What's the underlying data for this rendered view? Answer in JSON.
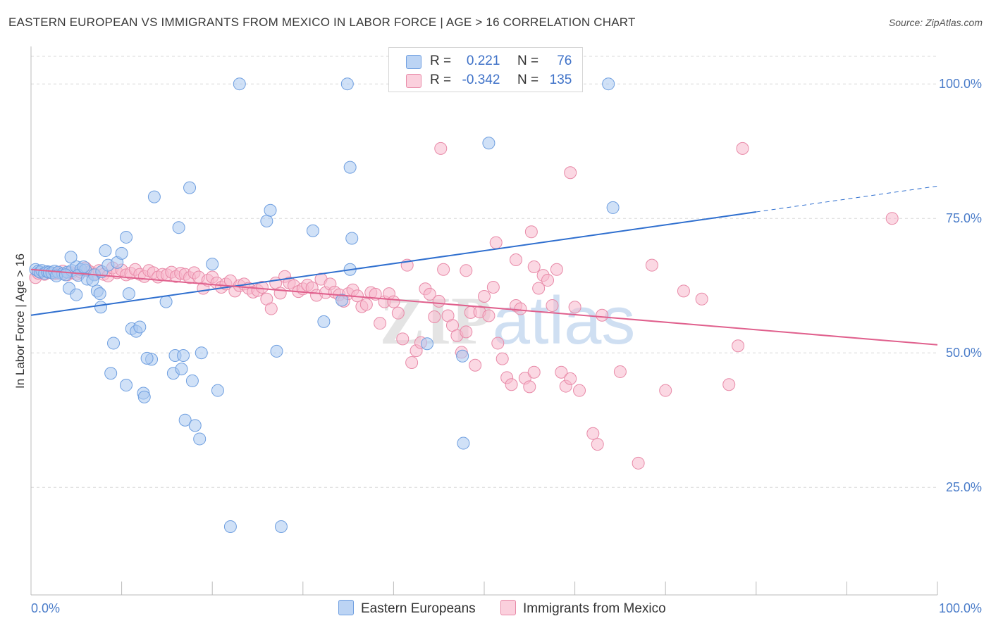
{
  "title": "EASTERN EUROPEAN VS IMMIGRANTS FROM MEXICO IN LABOR FORCE | AGE > 16 CORRELATION CHART",
  "source": "Source: ZipAtlas.com",
  "watermark": "ZIPatlas",
  "legend": {
    "rows": [
      {
        "r_label": "R =",
        "r_value": "0.221",
        "n_label": "N =",
        "n_value": "76"
      },
      {
        "r_label": "R =",
        "r_value": "-0.342",
        "n_label": "N =",
        "n_value": "135"
      }
    ]
  },
  "bottom_legend": [
    "Eastern Europeans",
    "Immigrants from Mexico"
  ],
  "colors": {
    "blue_fill": "#aac8f0",
    "blue_stroke": "#6f9fe0",
    "blue_line": "#2f6fcf",
    "pink_fill": "#f7b8cc",
    "pink_stroke": "#e88aa8",
    "pink_line": "#e0608d",
    "tick_text": "#4a7cc9",
    "grid": "#d8d8d8"
  },
  "chart_data": {
    "type": "scatter",
    "title": "EASTERN EUROPEAN VS IMMIGRANTS FROM MEXICO IN LABOR FORCE | AGE > 16 CORRELATION CHART",
    "xlabel": "",
    "ylabel": "In Labor Force | Age > 16",
    "xlim": [
      0,
      100
    ],
    "ylim": [
      5,
      105
    ],
    "x_tick_labels": [
      "0.0%",
      "100.0%"
    ],
    "y_ticks": [
      25,
      50,
      75,
      100
    ],
    "y_tick_labels": [
      "25.0%",
      "50.0%",
      "75.0%",
      "100.0%"
    ],
    "grid": true,
    "legend_position": "top-center",
    "series": [
      {
        "name": "Eastern Europeans",
        "r": 0.221,
        "n": 76,
        "trend": {
          "x0": 0,
          "y0": 57.0,
          "x1": 80,
          "y1": 76.2,
          "dashed_to_x": 100,
          "dashed_to_y": 81.0
        },
        "points": [
          [
            0.5,
            65.5
          ],
          [
            0.8,
            65.2
          ],
          [
            1.0,
            65.0
          ],
          [
            1.2,
            65.3
          ],
          [
            1.5,
            64.8
          ],
          [
            1.8,
            65.1
          ],
          [
            2.0,
            65.0
          ],
          [
            2.3,
            64.9
          ],
          [
            2.6,
            65.2
          ],
          [
            3.0,
            65.0
          ],
          [
            3.5,
            64.7
          ],
          [
            4.0,
            65.0
          ],
          [
            2.8,
            64.3
          ],
          [
            4.5,
            65.3
          ],
          [
            5.0,
            66.0
          ],
          [
            5.5,
            65.5
          ],
          [
            6.0,
            65.4
          ],
          [
            3.8,
            64.5
          ],
          [
            4.2,
            62.0
          ],
          [
            4.4,
            67.8
          ],
          [
            5.2,
            64.4
          ],
          [
            5.8,
            66.0
          ],
          [
            6.2,
            63.7
          ],
          [
            7.0,
            64.5
          ],
          [
            7.8,
            65.1
          ],
          [
            8.5,
            66.3
          ],
          [
            9.5,
            66.8
          ],
          [
            10.0,
            68.5
          ],
          [
            10.5,
            71.5
          ],
          [
            8.2,
            69.0
          ],
          [
            6.8,
            63.5
          ],
          [
            5.0,
            60.8
          ],
          [
            7.3,
            61.5
          ],
          [
            7.6,
            61.0
          ],
          [
            7.7,
            58.5
          ],
          [
            10.8,
            61.0
          ],
          [
            14.9,
            59.5
          ],
          [
            11.1,
            54.5
          ],
          [
            11.6,
            54.0
          ],
          [
            12.0,
            54.8
          ],
          [
            13.3,
            48.8
          ],
          [
            12.8,
            49.0
          ],
          [
            15.9,
            49.5
          ],
          [
            16.8,
            49.5
          ],
          [
            18.8,
            50.0
          ],
          [
            9.1,
            51.8
          ],
          [
            8.8,
            46.2
          ],
          [
            10.5,
            44.0
          ],
          [
            12.4,
            42.5
          ],
          [
            12.5,
            41.8
          ],
          [
            15.7,
            46.2
          ],
          [
            16.6,
            47.0
          ],
          [
            17.8,
            44.8
          ],
          [
            20.6,
            43.0
          ],
          [
            17.0,
            37.5
          ],
          [
            18.1,
            36.5
          ],
          [
            18.6,
            34.0
          ],
          [
            22.0,
            17.7
          ],
          [
            27.6,
            17.7
          ],
          [
            13.6,
            79.0
          ],
          [
            16.3,
            73.3
          ],
          [
            17.5,
            80.7
          ],
          [
            26.0,
            74.5
          ],
          [
            26.4,
            76.5
          ],
          [
            31.1,
            72.7
          ],
          [
            35.4,
            71.3
          ],
          [
            35.2,
            65.5
          ],
          [
            32.3,
            55.8
          ],
          [
            34.3,
            59.8
          ],
          [
            20.0,
            66.5
          ],
          [
            27.1,
            50.3
          ],
          [
            43.7,
            51.7
          ],
          [
            47.6,
            49.4
          ],
          [
            47.7,
            33.2
          ],
          [
            35.2,
            84.5
          ],
          [
            50.5,
            89.0
          ],
          [
            64.2,
            77.0
          ],
          [
            23.0,
            100.0
          ],
          [
            34.9,
            100.0
          ],
          [
            63.7,
            100.0
          ]
        ]
      },
      {
        "name": "Immigrants from Mexico",
        "r": -0.342,
        "n": 135,
        "trend": {
          "x0": 0,
          "y0": 65.5,
          "x1": 100,
          "y1": 51.5
        },
        "points": [
          [
            0.5,
            64.0
          ],
          [
            0.8,
            64.8
          ],
          [
            1.0,
            65.0
          ],
          [
            1.5,
            64.6
          ],
          [
            2.0,
            65.0
          ],
          [
            2.5,
            64.7
          ],
          [
            3.0,
            64.8
          ],
          [
            3.5,
            65.2
          ],
          [
            4.0,
            64.5
          ],
          [
            4.5,
            64.9
          ],
          [
            5.0,
            64.6
          ],
          [
            5.5,
            65.0
          ],
          [
            6.0,
            65.8
          ],
          [
            6.5,
            65.1
          ],
          [
            7.0,
            64.7
          ],
          [
            7.5,
            65.3
          ],
          [
            8.0,
            64.6
          ],
          [
            8.5,
            64.3
          ],
          [
            9.0,
            65.8
          ],
          [
            9.5,
            64.9
          ],
          [
            10.0,
            65.4
          ],
          [
            10.5,
            64.5
          ],
          [
            11.0,
            64.8
          ],
          [
            11.5,
            65.5
          ],
          [
            12.0,
            64.6
          ],
          [
            12.5,
            64.2
          ],
          [
            13.0,
            65.3
          ],
          [
            13.5,
            64.9
          ],
          [
            14.0,
            64.1
          ],
          [
            14.5,
            64.6
          ],
          [
            15.0,
            64.5
          ],
          [
            15.5,
            65.0
          ],
          [
            16.0,
            64.2
          ],
          [
            16.5,
            64.8
          ],
          [
            17.0,
            64.6
          ],
          [
            17.5,
            64.0
          ],
          [
            18.0,
            64.9
          ],
          [
            18.5,
            64.1
          ],
          [
            19.0,
            62.0
          ],
          [
            19.5,
            63.5
          ],
          [
            20.0,
            64.1
          ],
          [
            20.5,
            63.0
          ],
          [
            21.0,
            62.2
          ],
          [
            21.5,
            62.8
          ],
          [
            22.0,
            63.4
          ],
          [
            22.5,
            61.5
          ],
          [
            23.0,
            62.5
          ],
          [
            23.5,
            62.8
          ],
          [
            24.0,
            62.0
          ],
          [
            24.5,
            61.3
          ],
          [
            25.0,
            61.6
          ],
          [
            25.5,
            62.2
          ],
          [
            26.0,
            60.0
          ],
          [
            26.5,
            58.2
          ],
          [
            27.0,
            63.0
          ],
          [
            27.5,
            61.1
          ],
          [
            28.0,
            64.2
          ],
          [
            28.5,
            63.0
          ],
          [
            29.0,
            62.5
          ],
          [
            29.5,
            61.4
          ],
          [
            30.0,
            61.9
          ],
          [
            30.5,
            62.6
          ],
          [
            31.0,
            62.1
          ],
          [
            31.5,
            60.7
          ],
          [
            32.0,
            63.7
          ],
          [
            32.5,
            61.2
          ],
          [
            33.0,
            62.8
          ],
          [
            33.5,
            61.3
          ],
          [
            34.0,
            60.8
          ],
          [
            34.5,
            59.6
          ],
          [
            35.0,
            61.0
          ],
          [
            35.5,
            61.7
          ],
          [
            36.0,
            60.6
          ],
          [
            36.5,
            58.6
          ],
          [
            37.0,
            59.0
          ],
          [
            37.5,
            61.2
          ],
          [
            38.0,
            60.9
          ],
          [
            38.5,
            55.5
          ],
          [
            39.0,
            59.5
          ],
          [
            39.5,
            61.0
          ],
          [
            40.0,
            59.5
          ],
          [
            40.5,
            57.4
          ],
          [
            41.0,
            52.6
          ],
          [
            41.5,
            66.3
          ],
          [
            42.0,
            48.2
          ],
          [
            42.5,
            50.4
          ],
          [
            43.0,
            51.9
          ],
          [
            43.5,
            61.9
          ],
          [
            44.0,
            60.9
          ],
          [
            44.5,
            56.7
          ],
          [
            45.0,
            59.6
          ],
          [
            45.5,
            65.5
          ],
          [
            46.0,
            56.9
          ],
          [
            46.5,
            55.1
          ],
          [
            47.0,
            53.2
          ],
          [
            47.5,
            50.1
          ],
          [
            48.0,
            53.9
          ],
          [
            48.5,
            57.5
          ],
          [
            49.0,
            47.7
          ],
          [
            49.5,
            57.6
          ],
          [
            50.0,
            60.5
          ],
          [
            50.5,
            56.9
          ],
          [
            51.0,
            62.2
          ],
          [
            51.5,
            51.8
          ],
          [
            52.0,
            48.9
          ],
          [
            52.5,
            45.4
          ],
          [
            53.0,
            44.1
          ],
          [
            53.5,
            58.8
          ],
          [
            54.0,
            58.2
          ],
          [
            54.5,
            45.3
          ],
          [
            55.0,
            43.7
          ],
          [
            55.5,
            46.4
          ],
          [
            56.0,
            62.0
          ],
          [
            56.5,
            64.4
          ],
          [
            57.0,
            63.5
          ],
          [
            57.5,
            58.8
          ],
          [
            58.0,
            65.5
          ],
          [
            58.5,
            46.4
          ],
          [
            59.0,
            43.8
          ],
          [
            59.5,
            45.2
          ],
          [
            60.0,
            58.5
          ],
          [
            60.5,
            43.0
          ],
          [
            62.0,
            35.0
          ],
          [
            62.5,
            33.0
          ],
          [
            63.0,
            57.0
          ],
          [
            65.0,
            46.5
          ],
          [
            67.0,
            29.5
          ],
          [
            68.5,
            66.3
          ],
          [
            70.0,
            43.0
          ],
          [
            72.0,
            61.5
          ],
          [
            74.0,
            60.0
          ],
          [
            77.0,
            44.1
          ],
          [
            78.0,
            51.3
          ],
          [
            45.2,
            88.0
          ],
          [
            59.5,
            83.5
          ],
          [
            78.5,
            88.0
          ],
          [
            95.0,
            75.0
          ],
          [
            51.3,
            70.5
          ],
          [
            55.2,
            72.5
          ],
          [
            53.5,
            67.3
          ],
          [
            48.0,
            65.3
          ],
          [
            55.5,
            66.0
          ]
        ]
      }
    ]
  }
}
